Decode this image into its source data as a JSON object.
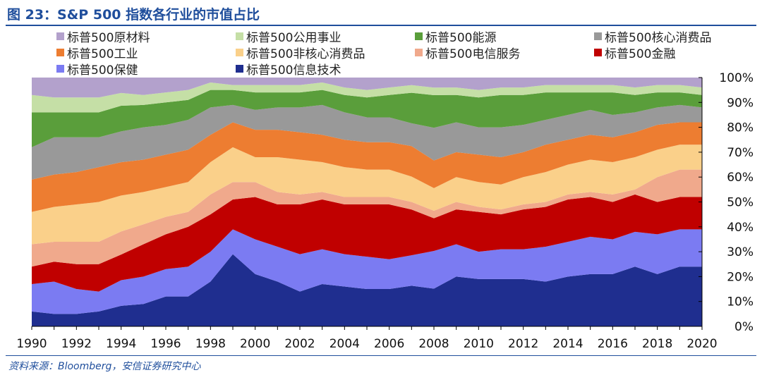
{
  "title": "图 23：S&P 500 指数各行业的市值占比",
  "source": "资料来源：Bloomberg，安信证券研究中心",
  "chart_data": {
    "type": "area",
    "stacked": true,
    "percent_stacked": true,
    "x": [
      1990,
      1991,
      1992,
      1993,
      1994,
      1995,
      1996,
      1997,
      1998,
      1999,
      2000,
      2001,
      2002,
      2003,
      2004,
      2005,
      2006,
      2007,
      2008,
      2009,
      2010,
      2011,
      2012,
      2013,
      2014,
      2015,
      2016,
      2017,
      2018,
      2019,
      2020
    ],
    "x_tick_labels": [
      "1990",
      "1992",
      "1994",
      "1996",
      "1998",
      "2000",
      "2002",
      "2004",
      "2006",
      "2008",
      "2010",
      "2012",
      "2014",
      "2016",
      "2018",
      "2020"
    ],
    "y_tick_labels": [
      "0%",
      "10%",
      "20%",
      "30%",
      "40%",
      "50%",
      "60%",
      "70%",
      "80%",
      "90%",
      "100%"
    ],
    "ylim": [
      0,
      100
    ],
    "y_axis_side": "right",
    "grid": false,
    "legend_position": "top",
    "xlabel": "",
    "ylabel": "",
    "series": [
      {
        "name": "标普500信息技术",
        "color": "#1F2E8F",
        "values": [
          6,
          5,
          5,
          6,
          8,
          9,
          12,
          12,
          18,
          29,
          21,
          18,
          14,
          17,
          16,
          15,
          15,
          16,
          15,
          20,
          19,
          19,
          19,
          18,
          20,
          21,
          21,
          24,
          21,
          24,
          24
        ]
      },
      {
        "name": "标普500保健",
        "color": "#7B7BF2",
        "values": [
          11,
          13,
          10,
          8,
          10,
          11,
          11,
          12,
          12,
          10,
          14,
          14,
          15,
          14,
          13,
          13,
          12,
          12,
          15,
          13,
          11,
          12,
          12,
          14,
          14,
          15,
          14,
          14,
          16,
          15,
          15
        ]
      },
      {
        "name": "标普500金融",
        "color": "#C00000",
        "values": [
          7,
          8,
          10,
          11,
          10,
          13,
          14,
          16,
          15,
          12,
          17,
          17,
          20,
          20,
          20,
          21,
          22,
          18,
          13,
          14,
          16,
          14,
          16,
          16,
          17,
          16,
          15,
          15,
          13,
          13,
          13
        ]
      },
      {
        "name": "标普500电信服务",
        "color": "#F0A98C",
        "values": [
          9,
          8,
          9,
          9,
          9,
          8,
          7,
          6,
          8,
          7,
          6,
          5,
          4,
          3,
          3,
          3,
          3,
          3,
          3,
          3,
          2,
          2,
          2,
          2,
          2,
          2,
          3,
          2,
          10,
          11,
          11
        ]
      },
      {
        "name": "标普500非核心消费品",
        "color": "#FAD08A",
        "values": [
          13,
          14,
          15,
          16,
          14,
          13,
          12,
          12,
          13,
          14,
          10,
          14,
          14,
          12,
          12,
          11,
          11,
          10,
          9,
          10,
          10,
          10,
          11,
          12,
          12,
          13,
          13,
          13,
          11,
          10,
          10
        ]
      },
      {
        "name": "标普500工业",
        "color": "#ED7D31",
        "values": [
          13,
          13,
          13,
          14,
          13,
          13,
          13,
          13,
          11,
          10,
          11,
          11,
          11,
          11,
          11,
          11,
          11,
          12,
          11,
          10,
          11,
          11,
          10,
          11,
          10,
          10,
          10,
          10,
          10,
          9,
          9
        ]
      },
      {
        "name": "标普500核心消费品",
        "color": "#999999",
        "values": [
          13,
          15,
          14,
          12,
          12,
          13,
          12,
          12,
          11,
          7,
          8,
          9,
          10,
          12,
          11,
          10,
          10,
          9,
          13,
          12,
          11,
          12,
          11,
          10,
          10,
          10,
          9,
          8,
          7,
          7,
          6
        ]
      },
      {
        "name": "标普500能源",
        "color": "#5A9E3B",
        "values": [
          14,
          10,
          10,
          10,
          10,
          9,
          9,
          8,
          7,
          6,
          7,
          6,
          6,
          6,
          7,
          8,
          9,
          12,
          13,
          11,
          12,
          13,
          12,
          11,
          9,
          7,
          9,
          7,
          6,
          5,
          5
        ]
      },
      {
        "name": "标普500公用事业",
        "color": "#C5DFA6",
        "values": [
          7,
          6,
          6,
          6,
          5,
          4,
          4,
          4,
          3,
          2,
          3,
          3,
          3,
          3,
          3,
          3,
          3,
          3,
          3,
          3,
          3,
          3,
          3,
          3,
          3,
          3,
          3,
          3,
          3,
          3,
          3
        ]
      },
      {
        "name": "标普500原材料",
        "color": "#B3A1CC",
        "values": [
          7,
          8,
          8,
          8,
          6,
          7,
          6,
          5,
          2,
          3,
          3,
          3,
          3,
          2,
          4,
          5,
          4,
          3,
          4,
          4,
          5,
          4,
          4,
          3,
          3,
          3,
          3,
          4,
          3,
          3,
          4
        ]
      }
    ],
    "legend_rows": [
      [
        "标普500原材料",
        "标普500公用事业",
        "标普500能源",
        "标普500核心消费品"
      ],
      [
        "标普500工业",
        "标普500非核心消费品",
        "标普500电信服务",
        "标普500金融"
      ],
      [
        "标普500保健",
        "标普500信息技术"
      ]
    ]
  }
}
